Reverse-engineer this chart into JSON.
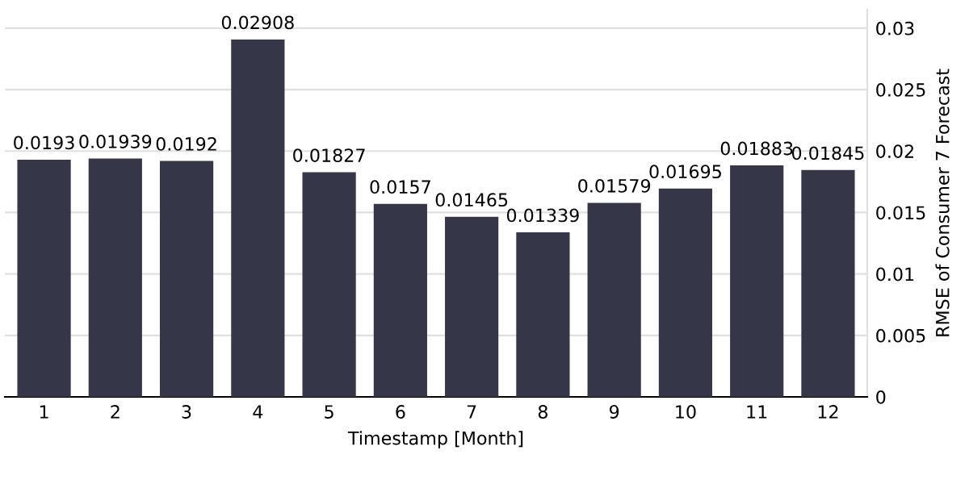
{
  "chart_data": {
    "type": "bar",
    "xlabel": "Timestamp [Month]",
    "ylabel": "RMSE of Consumer 7 Forecast",
    "categories": [
      "1",
      "2",
      "3",
      "4",
      "5",
      "6",
      "7",
      "8",
      "9",
      "10",
      "11",
      "12"
    ],
    "values": [
      0.0193,
      0.01939,
      0.0192,
      0.02908,
      0.01827,
      0.0157,
      0.01465,
      0.01339,
      0.01579,
      0.01695,
      0.01883,
      0.01845
    ],
    "color": "#363649",
    "data_labels": true,
    "grid": "y",
    "legend": false,
    "ylim": [
      0,
      0.0315
    ],
    "yticks": [
      0,
      0.005,
      0.01,
      0.015,
      0.02,
      0.025,
      0.03
    ]
  }
}
